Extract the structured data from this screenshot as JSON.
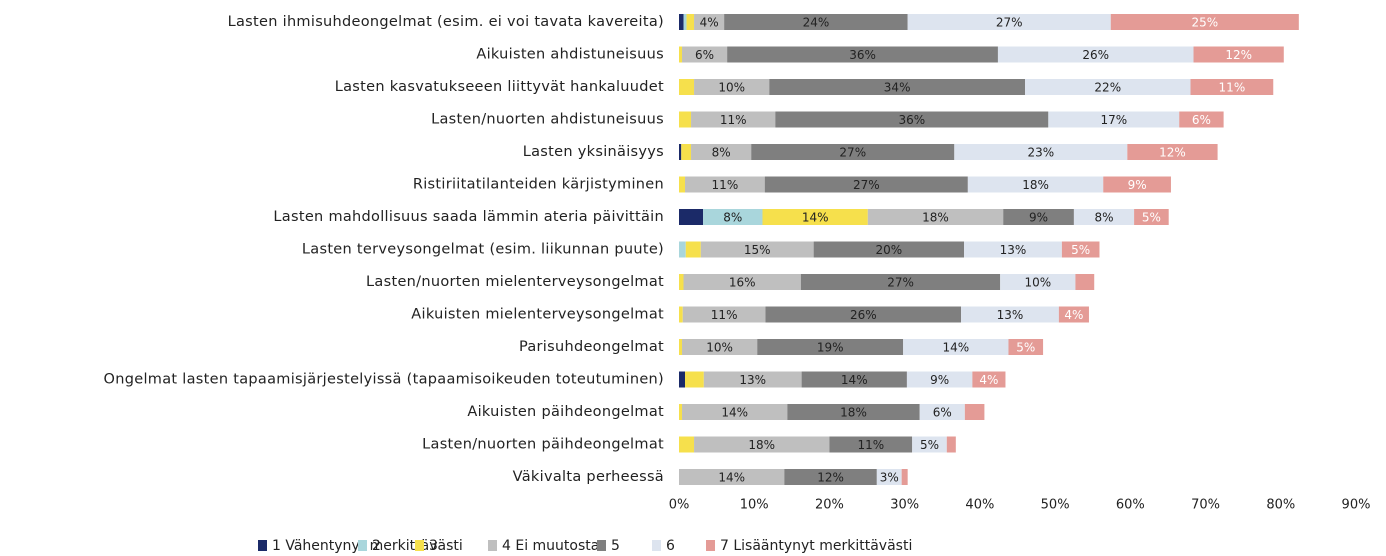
{
  "chart_data": {
    "type": "stacked-barh",
    "categories": [
      "Lasten ihmisuhdeongelmat (esim. ei voi tavata kavereita)",
      "Aikuisten ahdistuneisuus",
      "Lasten kasvatukseeen liittyvät hankaluudet",
      "Lasten/nuorten ahdistuneisuus",
      "Lasten yksinäisyys",
      "Ristiriitatilanteiden kärjistyminen",
      "Lasten mahdollisuus saada lämmin ateria päivittäin",
      "Lasten terveysongelmat (esim. liikunnan puute)",
      "Lasten/nuorten mielenterveysongelmat",
      "Aikuisten mielenterveysongelmat",
      "Parisuhdeongelmat",
      "Ongelmat lasten tapaamisjärjestelyissä (tapaamisoikeuden toteutuminen)",
      "Aikuisten päihdeongelmat",
      "Lasten/nuorten päihdeongelmat",
      "Väkivalta perheessä"
    ],
    "series": [
      {
        "name": "1 Vähentynyt merkittävästi",
        "color": "#1b2a68",
        "values": [
          0.6,
          0,
          0,
          0,
          0.3,
          0,
          3.2,
          0,
          0,
          0,
          0,
          0.8,
          0,
          0,
          0
        ],
        "value_labels": [
          null,
          null,
          null,
          null,
          null,
          null,
          null,
          null,
          null,
          null,
          null,
          null,
          null,
          null,
          null
        ]
      },
      {
        "name": "2",
        "color": "#a9d6dc",
        "values": [
          0.4,
          0,
          0,
          0,
          0,
          0,
          7.9,
          0.9,
          0,
          0,
          0,
          0,
          0,
          0,
          0
        ],
        "value_labels": [
          null,
          null,
          null,
          null,
          null,
          null,
          "8%",
          null,
          null,
          null,
          null,
          null,
          null,
          null,
          null
        ]
      },
      {
        "name": "3",
        "color": "#f6e04c",
        "values": [
          1,
          0.4,
          2,
          1.6,
          1.3,
          0.8,
          14,
          2,
          0.6,
          0.5,
          0.4,
          2.5,
          0.4,
          2,
          0
        ],
        "value_labels": [
          null,
          null,
          null,
          null,
          null,
          null,
          "14%",
          null,
          null,
          null,
          null,
          null,
          null,
          null,
          null
        ]
      },
      {
        "name": "4 Ei muutosta",
        "color": "#bfbfbf",
        "values": [
          4,
          6,
          10,
          11.2,
          8,
          10.6,
          18,
          15,
          15.6,
          11,
          10,
          13,
          14,
          18,
          14
        ],
        "value_labels": [
          "4%",
          "6%",
          "10%",
          "11%",
          "8%",
          "11%",
          "18%",
          "15%",
          "16%",
          "11%",
          "10%",
          "13%",
          "14%",
          "18%",
          "14%"
        ]
      },
      {
        "name": "5",
        "color": "#7f7f7f",
        "values": [
          24.4,
          36,
          34,
          36.3,
          27,
          27,
          9.4,
          20,
          26.5,
          26,
          19.4,
          14,
          17.6,
          11,
          12.3
        ],
        "value_labels": [
          "24%",
          "36%",
          "34%",
          "36%",
          "27%",
          "27%",
          "9%",
          "20%",
          "27%",
          "26%",
          "19%",
          "14%",
          "18%",
          "11%",
          "12%"
        ]
      },
      {
        "name": "6",
        "color": "#dde4ef",
        "values": [
          27,
          26,
          22,
          17.4,
          23,
          18,
          8,
          13,
          10,
          13,
          14,
          8.7,
          6,
          4.6,
          3.3
        ],
        "value_labels": [
          "27%",
          "26%",
          "22%",
          "17%",
          "23%",
          "18%",
          "8%",
          "13%",
          "10%",
          "13%",
          "14%",
          "9%",
          "6%",
          "5%",
          "3%"
        ]
      },
      {
        "name": "7 Lisääntynyt merkittävästi",
        "color": "#e49b96",
        "values": [
          25,
          12,
          11,
          5.9,
          12,
          9,
          4.6,
          5,
          2.5,
          4,
          4.6,
          4.4,
          2.6,
          1.2,
          0.8
        ],
        "value_labels": [
          "25%",
          "12%",
          "11%",
          "6%",
          "12%",
          "9%",
          "5%",
          "5%",
          null,
          "4%",
          "5%",
          "4%",
          null,
          null,
          null
        ]
      }
    ],
    "xlim": [
      0,
      90
    ],
    "xticks": [
      {
        "value": 0,
        "label": "0%"
      },
      {
        "value": 10,
        "label": "10%"
      },
      {
        "value": 20,
        "label": "20%"
      },
      {
        "value": 30,
        "label": "30%"
      },
      {
        "value": 40,
        "label": "40%"
      },
      {
        "value": 50,
        "label": "50%"
      },
      {
        "value": 60,
        "label": "60%"
      },
      {
        "value": 70,
        "label": "70%"
      },
      {
        "value": 80,
        "label": "80%"
      },
      {
        "value": 90,
        "label": "90%"
      }
    ],
    "legend": "bottom"
  }
}
